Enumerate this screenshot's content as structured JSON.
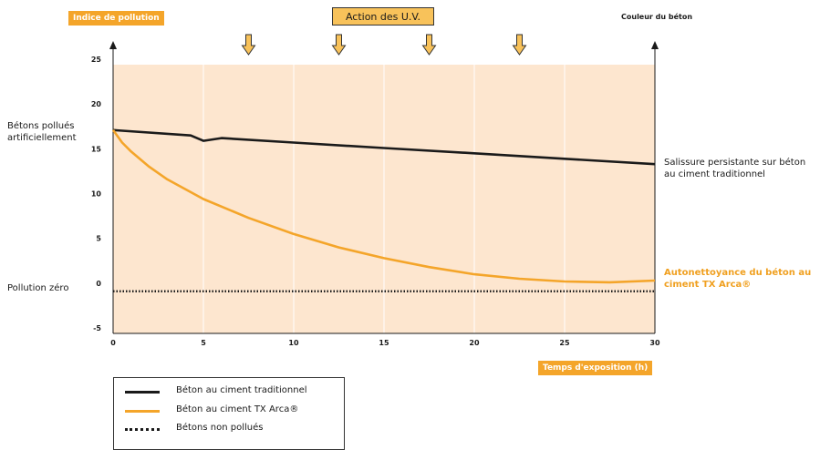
{
  "header": {
    "y_axis_title": "Indice de pollution",
    "uv_label": "Action des U.V.",
    "right_axis_title": "Couleur du béton"
  },
  "left_labels": {
    "polluted": "Bétons pollués artificiellement",
    "zero": "Pollution zéro"
  },
  "right_labels": {
    "traditional": "Salissure persistante sur béton au ciment traditionnel",
    "arca": "Autonettoyance du béton au ciment TX Arca®"
  },
  "legend": {
    "items": [
      {
        "label": "Béton au ciment traditionnel",
        "color": "#1a1a1a",
        "style": "solid"
      },
      {
        "label": "Béton au ciment TX Arca®",
        "color": "#f4a52a",
        "style": "solid"
      },
      {
        "label": "Bétons non pollués",
        "color": "#1a1a1a",
        "style": "dotted"
      }
    ]
  },
  "colors": {
    "plot_background": "#fde6cf",
    "accent": "#f4a52a",
    "uv_arrow": "#f8c25a"
  },
  "chart_data": {
    "type": "line",
    "xlabel": "Temps d'exposition (h)",
    "ylabel": "Indice de pollution",
    "xlim": [
      0,
      30
    ],
    "ylim": [
      -5,
      25
    ],
    "x_ticks": [
      0,
      5,
      10,
      15,
      20,
      25,
      30
    ],
    "y_ticks": [
      -5,
      0,
      5,
      10,
      15,
      20,
      25
    ],
    "grid": "vertical",
    "uv_arrows_x": [
      7.5,
      12.5,
      17.5,
      22.5
    ],
    "series": [
      {
        "name": "Béton au ciment traditionnel",
        "color": "#1a1a1a",
        "style": "solid",
        "x": [
          0,
          4.3,
          5,
          6,
          10,
          15,
          20,
          25,
          30
        ],
        "y": [
          17.7,
          17.1,
          16.5,
          16.8,
          16.3,
          15.7,
          15.1,
          14.5,
          13.9
        ]
      },
      {
        "name": "Béton au ciment TX Arca®",
        "color": "#f4a52a",
        "style": "solid",
        "x": [
          0,
          0.5,
          1,
          2,
          3,
          5,
          7.5,
          10,
          12.5,
          15,
          17.5,
          20,
          22.5,
          25,
          27.5,
          30
        ],
        "y": [
          17.7,
          16.3,
          15.3,
          13.6,
          12.2,
          10,
          7.9,
          6.1,
          4.6,
          3.4,
          2.4,
          1.6,
          1.1,
          0.8,
          0.7,
          0.9
        ]
      },
      {
        "name": "Bétons non pollués",
        "color": "#1a1a1a",
        "style": "dotted",
        "x": [
          0,
          30
        ],
        "y": [
          -0.3,
          -0.3
        ]
      }
    ]
  }
}
